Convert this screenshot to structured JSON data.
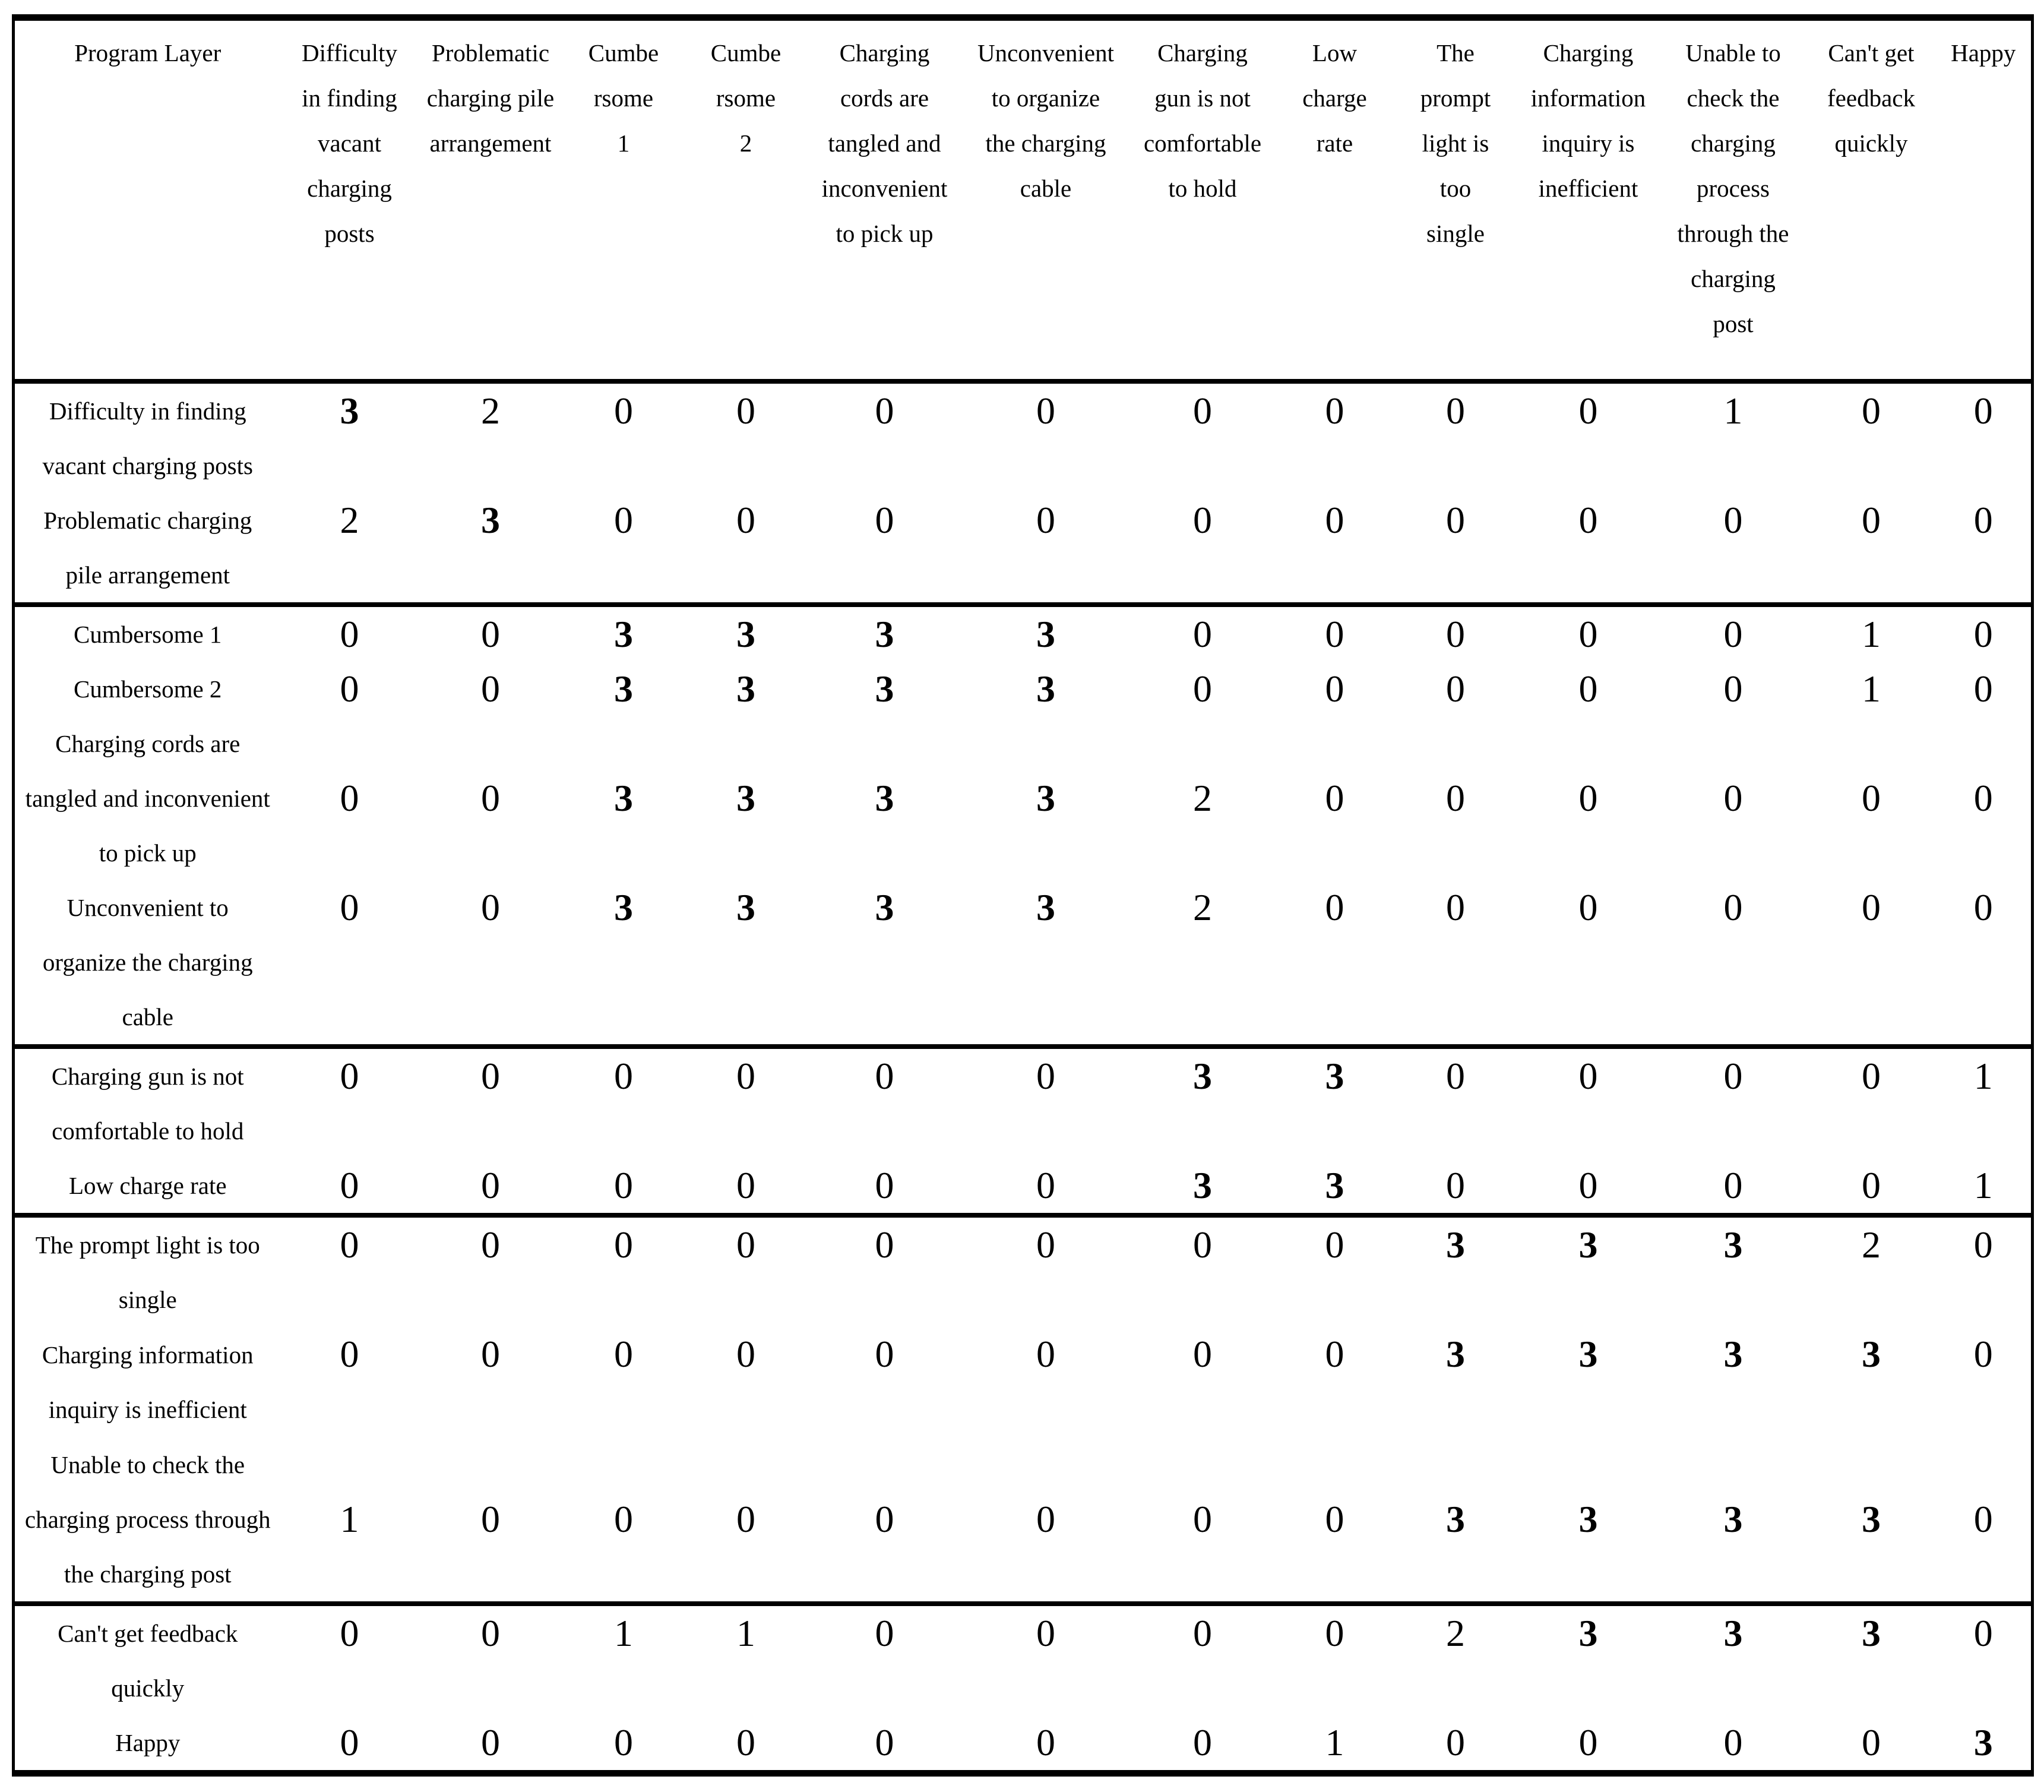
{
  "table": {
    "corner_label": "Program Layer",
    "bold_value": 3,
    "text_color": "#000000",
    "border_color": "#000000",
    "background_color": "#ffffff",
    "columns": [
      {
        "id": "difficulty-finding-vacant-posts",
        "header_lines": [
          "Difficulty",
          "in finding",
          "vacant",
          "charging",
          "posts"
        ]
      },
      {
        "id": "problematic-pile-arrangement",
        "header_lines": [
          "Problematic",
          "charging pile",
          "arrangement"
        ]
      },
      {
        "id": "cumbersome-1",
        "header_lines": [
          "Cumbe",
          "rsome",
          "1"
        ]
      },
      {
        "id": "cumbersome-2",
        "header_lines": [
          "Cumbe",
          "rsome",
          "2"
        ]
      },
      {
        "id": "cords-tangled",
        "header_lines": [
          "Charging",
          "cords are",
          "tangled and",
          "inconvenient",
          "to pick up"
        ]
      },
      {
        "id": "unconvenient-organize-cable",
        "header_lines": [
          "Unconvenient",
          "to organize",
          "the charging",
          "cable"
        ]
      },
      {
        "id": "gun-not-comfortable",
        "header_lines": [
          "Charging",
          "gun is not",
          "comfortable",
          "to hold"
        ]
      },
      {
        "id": "low-charge-rate",
        "header_lines": [
          "Low",
          "charge",
          "rate"
        ]
      },
      {
        "id": "prompt-light-single",
        "header_lines": [
          "The",
          "prompt",
          "light is",
          "too",
          "single"
        ]
      },
      {
        "id": "info-inquiry-inefficient",
        "header_lines": [
          "Charging",
          "information",
          "inquiry is",
          "inefficient"
        ]
      },
      {
        "id": "unable-check-process",
        "header_lines": [
          "Unable to",
          "check the",
          "charging",
          "process",
          "through the",
          "charging",
          "post"
        ]
      },
      {
        "id": "cant-get-feedback",
        "header_lines": [
          "Can't get",
          "feedback",
          "quickly"
        ]
      },
      {
        "id": "happy",
        "header_lines": [
          "Happy"
        ]
      }
    ],
    "row_groups": [
      {
        "rows": [
          {
            "id": "difficulty-finding-vacant-posts",
            "label_lines": [
              "Difficulty in finding",
              "vacant charging posts"
            ],
            "values": [
              3,
              2,
              0,
              0,
              0,
              0,
              0,
              0,
              0,
              0,
              1,
              0,
              0
            ]
          },
          {
            "id": "problematic-pile-arrangement",
            "label_lines": [
              "Problematic charging",
              "pile arrangement"
            ],
            "values": [
              2,
              3,
              0,
              0,
              0,
              0,
              0,
              0,
              0,
              0,
              0,
              0,
              0
            ]
          }
        ]
      },
      {
        "rows": [
          {
            "id": "cumbersome-1",
            "label_lines": [
              "Cumbersome 1"
            ],
            "values": [
              0,
              0,
              3,
              3,
              3,
              3,
              0,
              0,
              0,
              0,
              0,
              1,
              0
            ]
          },
          {
            "id": "cumbersome-2",
            "label_lines": [
              "Cumbersome 2"
            ],
            "values": [
              0,
              0,
              3,
              3,
              3,
              3,
              0,
              0,
              0,
              0,
              0,
              1,
              0
            ]
          },
          {
            "id": "cords-tangled",
            "label_lines": [
              "Charging cords are",
              "tangled and inconvenient",
              "to pick up"
            ],
            "values": [
              0,
              0,
              3,
              3,
              3,
              3,
              2,
              0,
              0,
              0,
              0,
              0,
              0
            ]
          },
          {
            "id": "unconvenient-organize-cable",
            "label_lines": [
              "Unconvenient to",
              "organize the charging",
              "cable"
            ],
            "values": [
              0,
              0,
              3,
              3,
              3,
              3,
              2,
              0,
              0,
              0,
              0,
              0,
              0
            ]
          }
        ]
      },
      {
        "rows": [
          {
            "id": "gun-not-comfortable",
            "label_lines": [
              "Charging gun is not",
              "comfortable to hold"
            ],
            "values": [
              0,
              0,
              0,
              0,
              0,
              0,
              3,
              3,
              0,
              0,
              0,
              0,
              1
            ]
          },
          {
            "id": "low-charge-rate",
            "label_lines": [
              "Low charge rate"
            ],
            "values": [
              0,
              0,
              0,
              0,
              0,
              0,
              3,
              3,
              0,
              0,
              0,
              0,
              1
            ]
          }
        ]
      },
      {
        "rows": [
          {
            "id": "prompt-light-single",
            "label_lines": [
              "The prompt light is too",
              "single"
            ],
            "values": [
              0,
              0,
              0,
              0,
              0,
              0,
              0,
              0,
              3,
              3,
              3,
              2,
              0
            ]
          },
          {
            "id": "info-inquiry-inefficient",
            "label_lines": [
              "Charging information",
              "inquiry is inefficient"
            ],
            "values": [
              0,
              0,
              0,
              0,
              0,
              0,
              0,
              0,
              3,
              3,
              3,
              3,
              0
            ]
          },
          {
            "id": "unable-check-process",
            "label_lines": [
              "Unable to check the",
              "charging process through",
              "the charging post"
            ],
            "values": [
              1,
              0,
              0,
              0,
              0,
              0,
              0,
              0,
              3,
              3,
              3,
              3,
              0
            ]
          }
        ]
      },
      {
        "rows": [
          {
            "id": "cant-get-feedback",
            "label_lines": [
              "Can't get feedback",
              "quickly"
            ],
            "values": [
              0,
              0,
              1,
              1,
              0,
              0,
              0,
              0,
              2,
              3,
              3,
              3,
              0
            ]
          },
          {
            "id": "happy",
            "label_lines": [
              "Happy"
            ],
            "values": [
              0,
              0,
              0,
              0,
              0,
              0,
              0,
              1,
              0,
              0,
              0,
              0,
              3
            ]
          }
        ]
      }
    ]
  }
}
